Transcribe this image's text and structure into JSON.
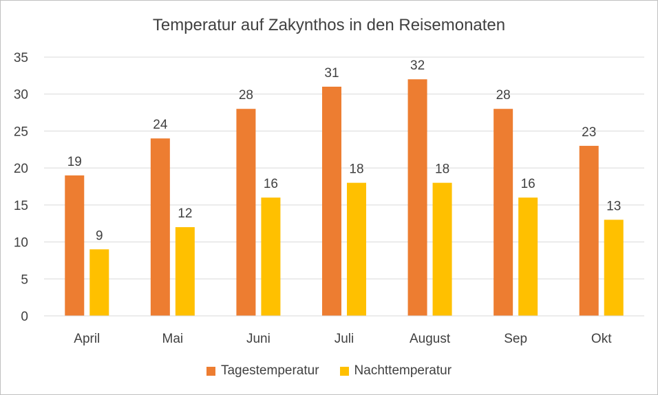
{
  "chart_data": {
    "type": "bar",
    "title": "Temperatur auf Zakynthos in den Reisemonaten",
    "categories": [
      "April",
      "Mai",
      "Juni",
      "Juli",
      "August",
      "Sep",
      "Okt"
    ],
    "series": [
      {
        "name": "Tagestemperatur",
        "color": "#ED7D31",
        "values": [
          19,
          24,
          28,
          31,
          32,
          28,
          23
        ]
      },
      {
        "name": "Nachttemperatur",
        "color": "#FFC000",
        "values": [
          9,
          12,
          16,
          18,
          18,
          16,
          13
        ]
      }
    ],
    "ylim": [
      0,
      35
    ],
    "yticks": [
      0,
      5,
      10,
      15,
      20,
      25,
      30,
      35
    ],
    "grid": true,
    "legend_position": "bottom"
  }
}
